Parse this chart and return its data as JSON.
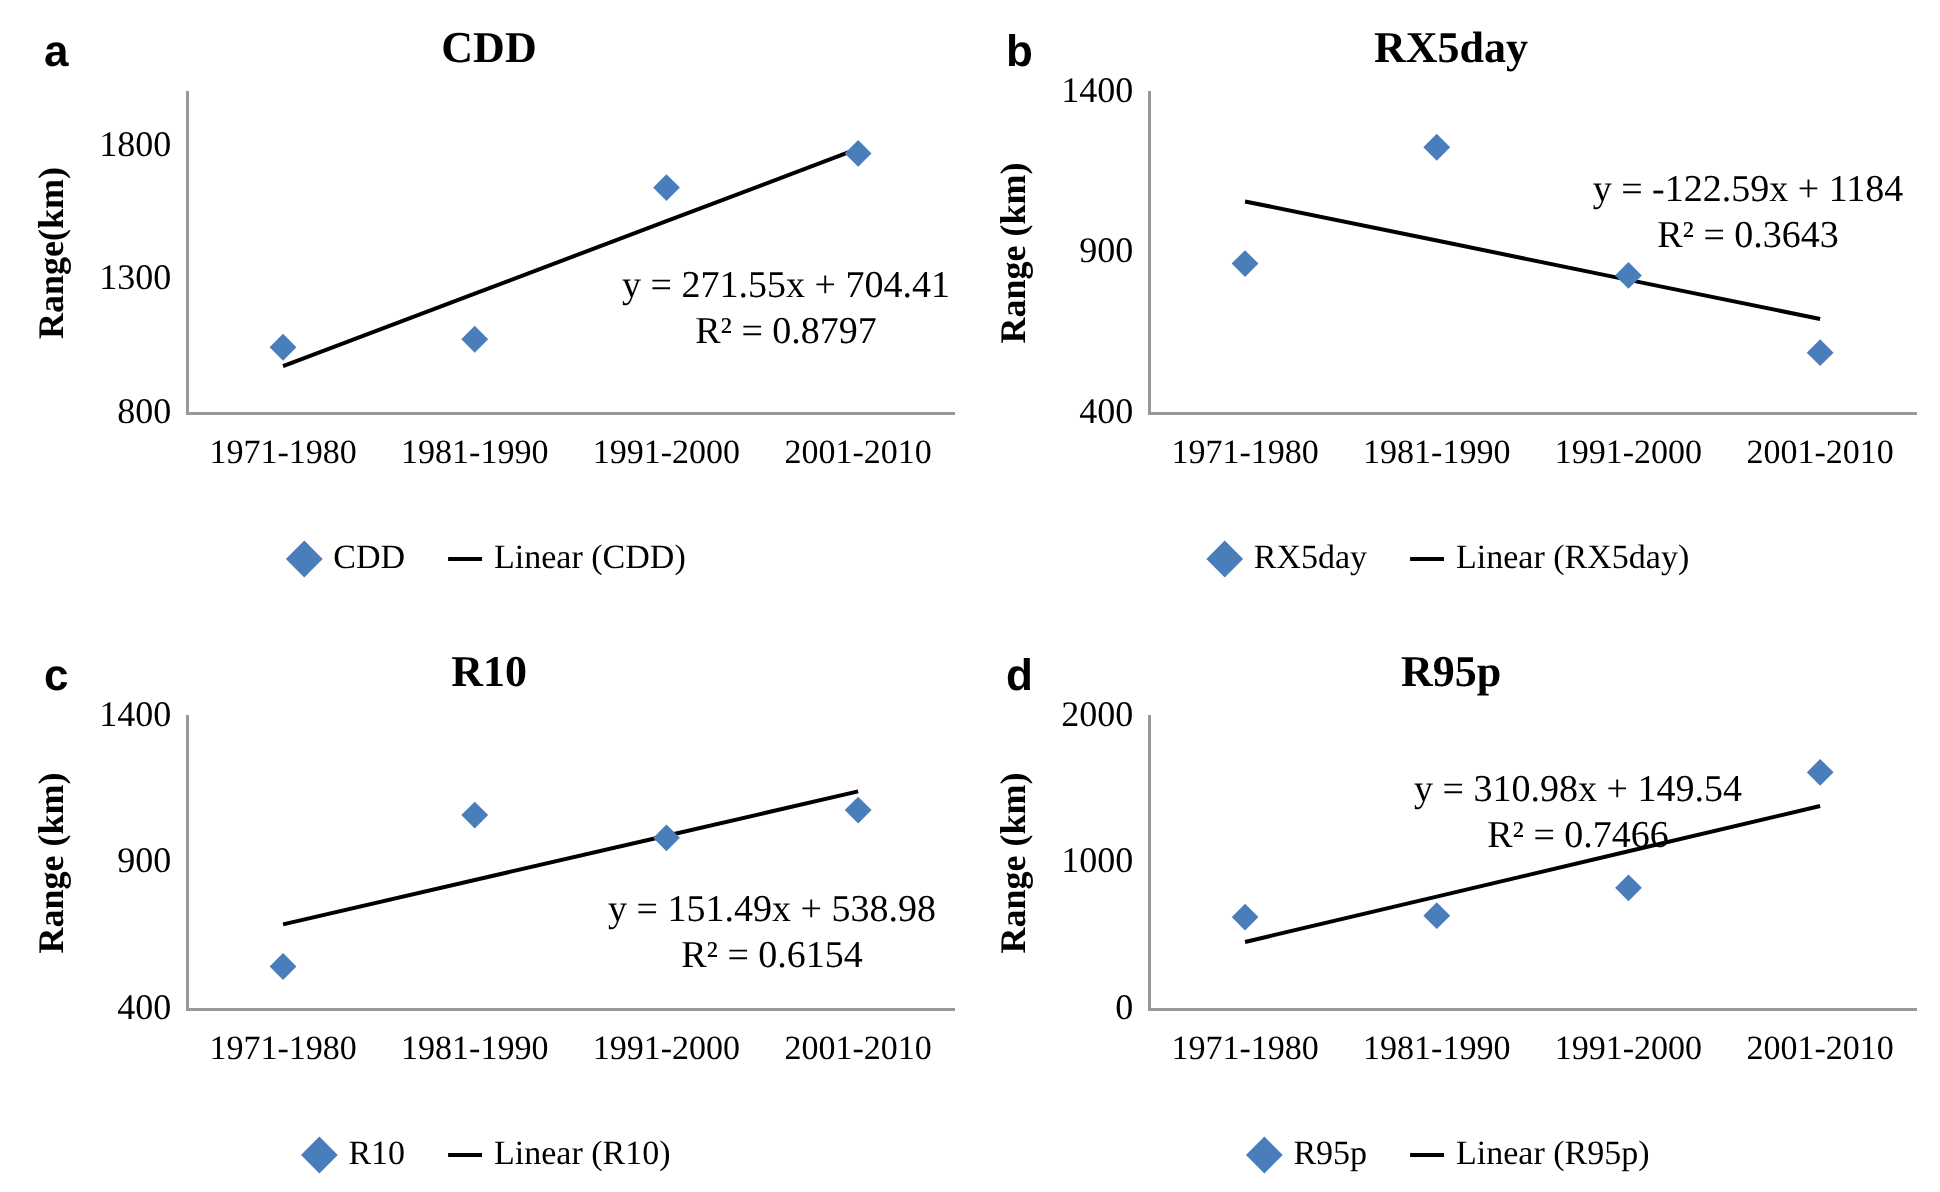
{
  "chart_data": [
    {
      "type": "scatter",
      "title": "CDD",
      "ylabel": "Range(km)",
      "categories": [
        "1971-1980",
        "1981-1990",
        "1991-2000",
        "2001-2010"
      ],
      "ylim": [
        800,
        2000
      ],
      "yticks": [
        800,
        1300,
        1800
      ],
      "legend": "bottom",
      "grid": false,
      "series": [
        {
          "name": "CDD",
          "color": "#4a7ebb",
          "marker": "diamond",
          "values": [
            1047,
            1077,
            1645,
            1773
          ]
        },
        {
          "name": "Linear (CDD)",
          "type": "line",
          "color": "#000000",
          "marker": "none",
          "values": [
            976,
            1248,
            1519,
            1791
          ]
        }
      ],
      "annotations": [
        "a",
        "y = 271.55x + 704.41",
        "R² = 0.8797"
      ]
    },
    {
      "type": "scatter",
      "title": "RX5day",
      "ylabel": "Range (km)",
      "categories": [
        "1971-1980",
        "1981-1990",
        "1991-2000",
        "2001-2010"
      ],
      "ylim": [
        400,
        1400
      ],
      "yticks": [
        400,
        900,
        1400
      ],
      "legend": "bottom",
      "grid": false,
      "series": [
        {
          "name": "RX5day",
          "color": "#4a7ebb",
          "marker": "diamond",
          "values": [
            867,
            1230,
            830,
            589
          ]
        },
        {
          "name": "Linear (RX5day)",
          "type": "line",
          "color": "#000000",
          "marker": "none",
          "values": [
            1061,
            939,
            816,
            694
          ]
        }
      ],
      "annotations": [
        "b",
        "y = -122.59x + 1184",
        "R² = 0.3643"
      ]
    },
    {
      "type": "scatter",
      "title": "R10",
      "ylabel": "Range (km)",
      "categories": [
        "1971-1980",
        "1981-1990",
        "1991-2000",
        "2001-2010"
      ],
      "ylim": [
        400,
        1400
      ],
      "yticks": [
        400,
        900,
        1400
      ],
      "legend": "bottom",
      "grid": false,
      "series": [
        {
          "name": "R10",
          "color": "#4a7ebb",
          "marker": "diamond",
          "values": [
            546,
            1064,
            986,
            1081
          ]
        },
        {
          "name": "Linear (R10)",
          "type": "line",
          "color": "#000000",
          "marker": "none",
          "values": [
            690,
            842,
            993,
            1145
          ]
        }
      ],
      "annotations": [
        "c",
        "y = 151.49x + 538.98",
        "R² = 0.6154"
      ]
    },
    {
      "type": "scatter",
      "title": "R95p",
      "ylabel": "Range (km)",
      "categories": [
        "1971-1980",
        "1981-1990",
        "1991-2000",
        "2001-2010"
      ],
      "ylim": [
        0,
        2000
      ],
      "yticks": [
        0,
        1000,
        2000
      ],
      "legend": "bottom",
      "grid": false,
      "series": [
        {
          "name": "R95p",
          "color": "#4a7ebb",
          "marker": "diamond",
          "values": [
            630,
            640,
            830,
            1620
          ]
        },
        {
          "name": "Linear (R95p)",
          "type": "line",
          "color": "#000000",
          "marker": "none",
          "values": [
            460,
            770,
            1080,
            1390
          ]
        }
      ],
      "annotations": [
        "d",
        "y = 310.98x + 149.54",
        "R² = 0.7466"
      ]
    }
  ]
}
